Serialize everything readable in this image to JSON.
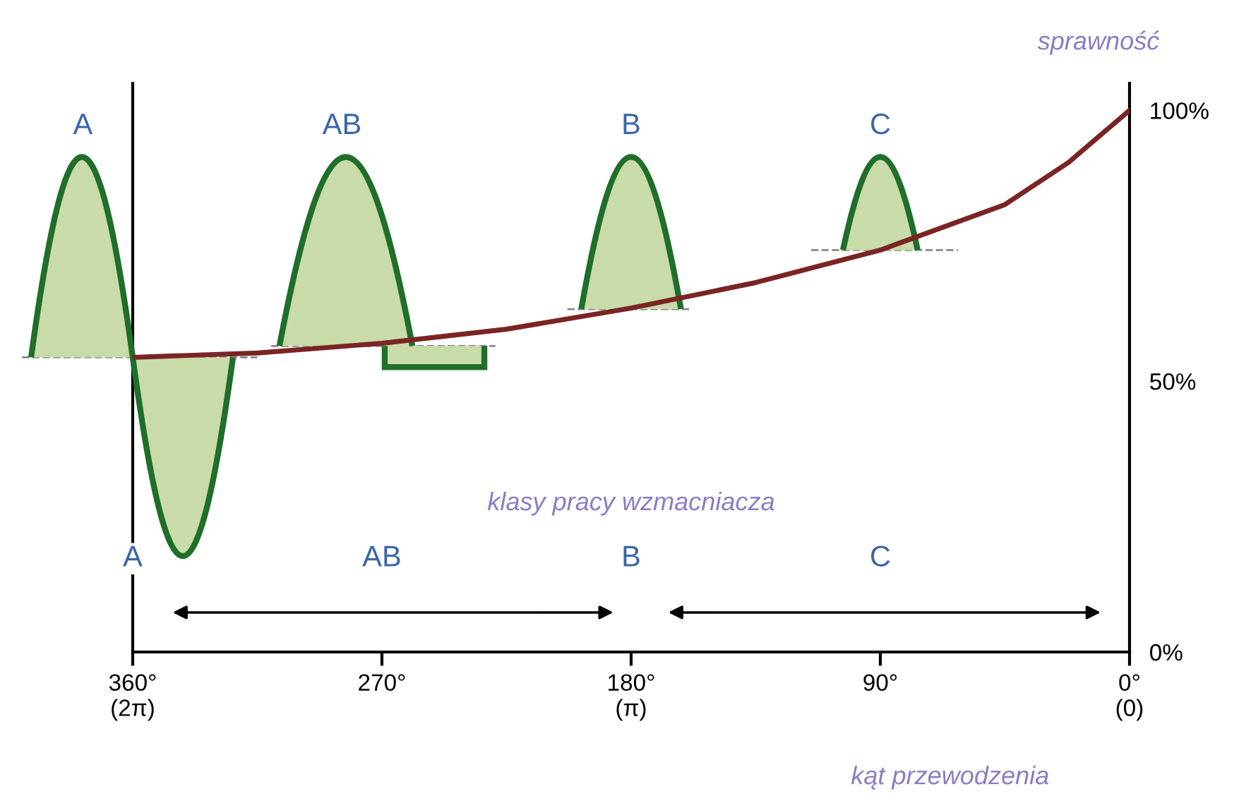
{
  "chart_data": {
    "type": "line",
    "x": [
      360,
      315,
      270,
      225,
      180,
      135,
      90,
      45,
      22,
      0
    ],
    "series": [
      {
        "color": "#7a2424",
        "values": [
          54.4,
          55.2,
          57.0,
          59.6,
          63.5,
          68.2,
          74.2,
          82.6,
          90.4,
          100
        ]
      }
    ],
    "xlim": [
      360,
      0
    ],
    "xticks": [
      {
        "value": 360,
        "label": "360°\n(2π)"
      },
      {
        "value": 270,
        "label": "270°"
      },
      {
        "value": 180,
        "label": "180°\n(π)"
      },
      {
        "value": 90,
        "label": "90°"
      },
      {
        "value": 0,
        "label": "0°\n(0)"
      }
    ],
    "ylim": [
      0,
      105
    ],
    "yticks": [
      {
        "value": 0,
        "label": "0%"
      },
      {
        "value": 50,
        "label": "50%"
      },
      {
        "value": 100,
        "label": "100%"
      }
    ],
    "xlabel": "kąt przewodzenia",
    "ylabel": "sprawność",
    "annotations": [
      "A",
      "AB",
      "B",
      "C",
      "klasy pracy wzmacniacza",
      "A",
      "AB",
      "B",
      "C"
    ],
    "grid": false,
    "legend": false,
    "marker": "none",
    "line_style": "solid"
  }
}
